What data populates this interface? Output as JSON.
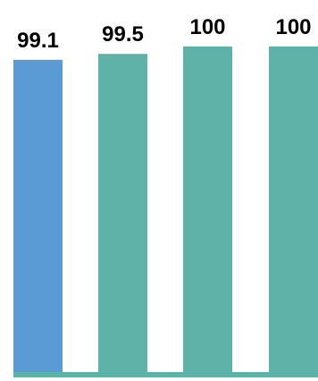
{
  "chart_data": {
    "type": "bar",
    "categories": [
      "",
      "",
      "",
      ""
    ],
    "values": [
      99.1,
      99.5,
      100,
      100
    ],
    "data_labels": [
      "99.1",
      "99.5",
      "100",
      "100"
    ],
    "bar_colors": [
      "#5b9bd5",
      "#5fb2a8",
      "#5fb2a8",
      "#5fb2a8"
    ],
    "baseline_color": "#5fb2a8",
    "title": "",
    "xlabel": "",
    "ylabel": "",
    "ylim": [
      0,
      100
    ],
    "grid": false,
    "legend": "none"
  }
}
